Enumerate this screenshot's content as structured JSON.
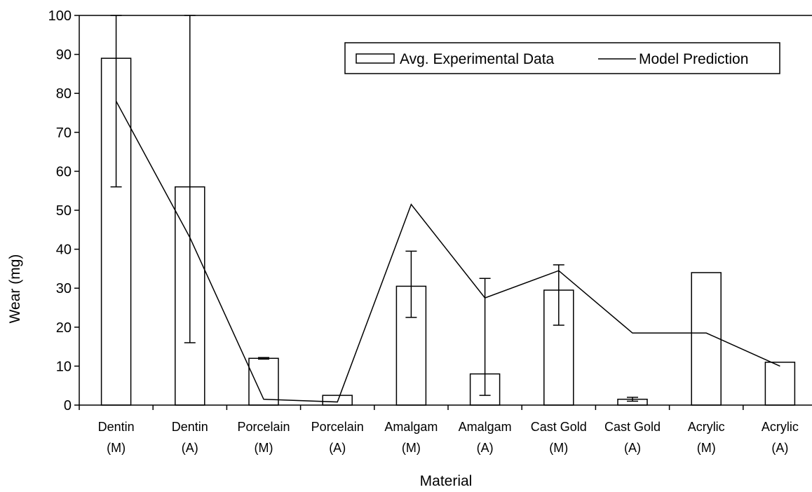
{
  "chart_data": {
    "type": "bar",
    "title": "",
    "xlabel": "Material",
    "ylabel": "Wear (mg)",
    "ylim": [
      0,
      100
    ],
    "yticks": [
      0,
      10,
      20,
      30,
      40,
      50,
      60,
      70,
      80,
      90,
      100
    ],
    "grid": false,
    "legend_position": "top-right",
    "categories": [
      [
        "Dentin",
        "(M)"
      ],
      [
        "Dentin",
        "(A)"
      ],
      [
        "Porcelain",
        "(M)"
      ],
      [
        "Porcelain",
        "(A)"
      ],
      [
        "Amalgam",
        "(M)"
      ],
      [
        "Amalgam",
        "(A)"
      ],
      [
        "Cast Gold",
        "(M)"
      ],
      [
        "Cast Gold",
        "(A)"
      ],
      [
        "Acrylic",
        "(M)"
      ],
      [
        "Acrylic",
        "(A)"
      ]
    ],
    "series": [
      {
        "name": "Avg. Experimental Data",
        "kind": "bar",
        "values": [
          89,
          56,
          12,
          2.5,
          30.5,
          8,
          29.5,
          1.5,
          34,
          11
        ],
        "error_low": [
          56,
          16,
          11.8,
          2.5,
          22.5,
          2.5,
          20.5,
          1,
          34,
          11
        ],
        "error_high": [
          101,
          101,
          12.2,
          2.5,
          39.5,
          32.5,
          36,
          2,
          34,
          11
        ]
      },
      {
        "name": "Model Prediction",
        "kind": "line",
        "values": [
          78,
          43,
          1.5,
          0.8,
          51.5,
          27.5,
          34.5,
          18.5,
          18.5,
          10
        ]
      }
    ]
  }
}
